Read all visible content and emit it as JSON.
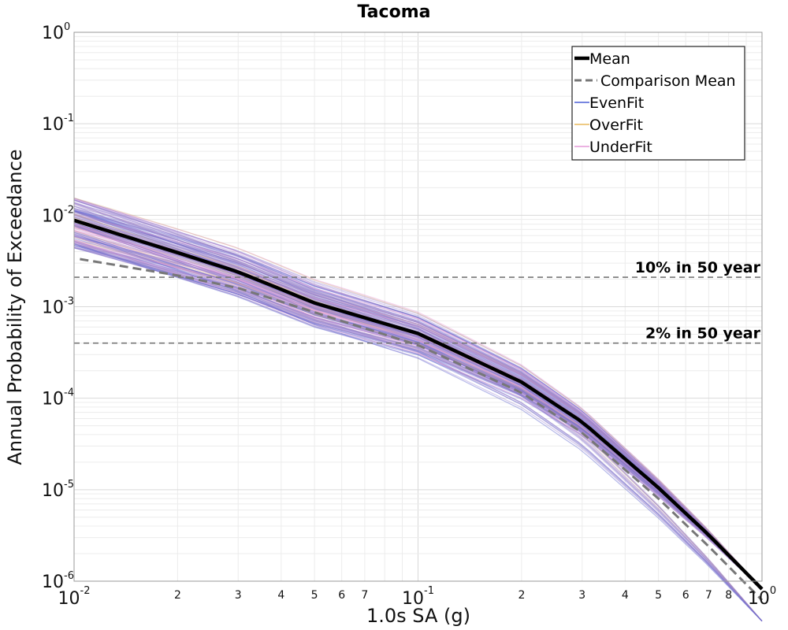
{
  "chart_data": {
    "type": "line",
    "title": "Tacoma",
    "xlabel": "1.0s SA (g)",
    "ylabel": "Annual Probability of Exceedance",
    "xscale": "log",
    "yscale": "log",
    "xlim": [
      0.01,
      1.0
    ],
    "ylim": [
      1e-06,
      1.0
    ],
    "grid": true,
    "legend_position": "top-right",
    "x_major_ticks": [
      {
        "base": "10",
        "exp": "-2"
      },
      {
        "base": "10",
        "exp": "-1"
      },
      {
        "base": "10",
        "exp": "0"
      }
    ],
    "x_minor_tick_labels": [
      "2",
      "3",
      "4",
      "5",
      "6",
      "7",
      "2",
      "3",
      "4",
      "5",
      "6",
      "7",
      "8"
    ],
    "y_major_ticks": [
      {
        "base": "10",
        "exp": "0"
      },
      {
        "base": "10",
        "exp": "-1"
      },
      {
        "base": "10",
        "exp": "-2"
      },
      {
        "base": "10",
        "exp": "-3"
      },
      {
        "base": "10",
        "exp": "-4"
      },
      {
        "base": "10",
        "exp": "-5"
      },
      {
        "base": "10",
        "exp": "-6"
      }
    ],
    "x": [
      0.01,
      0.02,
      0.03,
      0.05,
      0.1,
      0.2,
      0.3,
      0.5,
      0.7,
      1.0
    ],
    "series": [
      {
        "name": "Mean",
        "color": "#000000",
        "style": "solid-thick",
        "values": [
          0.0088,
          0.0039,
          0.0024,
          0.0011,
          0.00051,
          0.00015,
          5.5e-05,
          1.05e-05,
          3.2e-06,
          8.2e-07
        ]
      },
      {
        "name": "Comparison Mean",
        "color": "#777777",
        "style": "dashed",
        "values": [
          0.0034,
          0.0022,
          0.0016,
          0.00087,
          0.00038,
          0.000115,
          4.2e-05,
          8e-06,
          2.4e-06,
          6.2e-07
        ]
      },
      {
        "name": "EvenFit",
        "color": "#4a5fd6",
        "style": "thin-bundle"
      },
      {
        "name": "OverFit",
        "color": "#e8b85c",
        "style": "thin-bundle"
      },
      {
        "name": "UnderFit",
        "color": "#e59ad9",
        "style": "thin-bundle"
      }
    ],
    "reference_lines": [
      {
        "label": "10% in 50 year",
        "value": 0.0021
      },
      {
        "label": "2% in 50 year",
        "value": 0.0004
      }
    ]
  }
}
